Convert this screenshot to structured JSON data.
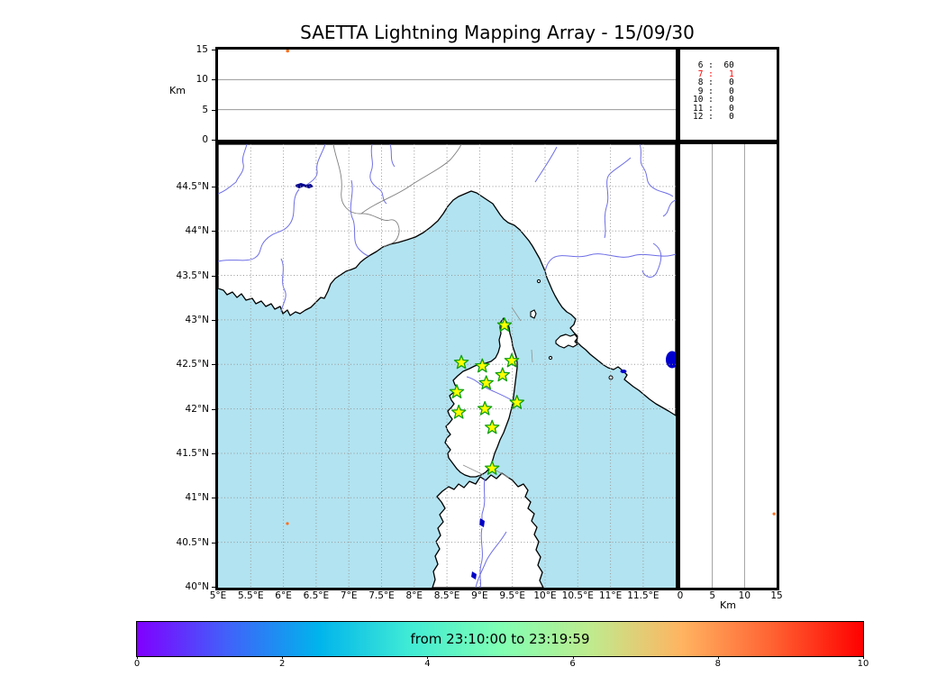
{
  "chart_data": {
    "type": "map",
    "title": "SAETTA Lightning Mapping Array - 15/09/30",
    "altitude_time_panel": {
      "ylabel": "Km",
      "ylim": [
        0,
        15
      ],
      "yticks": [
        {
          "v": 0,
          "label": "0"
        },
        {
          "v": 5,
          "label": "5"
        },
        {
          "v": 10,
          "label": "10"
        },
        {
          "v": 15,
          "label": "15"
        }
      ],
      "gridlines_km": [
        5,
        10
      ],
      "points": [
        {
          "time_frac": 0.152,
          "alt_km": 15.0
        }
      ]
    },
    "station_count_panel": {
      "rows": [
        {
          "key": "6",
          "value": "60",
          "highlight": false
        },
        {
          "key": "7",
          "value": "1",
          "highlight": true
        },
        {
          "key": "8",
          "value": "0",
          "highlight": false
        },
        {
          "key": "9",
          "value": "0",
          "highlight": false
        },
        {
          "key": "10",
          "value": "0",
          "highlight": false
        },
        {
          "key": "11",
          "value": "0",
          "highlight": false
        },
        {
          "key": "12",
          "value": "0",
          "highlight": false
        }
      ],
      "highlight_color": "#ff0000"
    },
    "map_panel": {
      "lon_range": [
        5,
        12
      ],
      "lat_range": [
        40,
        44.97
      ],
      "lon_ticks": [
        {
          "v": 5,
          "label": "5°E"
        },
        {
          "v": 5.5,
          "label": "5.5°E"
        },
        {
          "v": 6,
          "label": "6°E"
        },
        {
          "v": 6.5,
          "label": "6.5°E"
        },
        {
          "v": 7,
          "label": "7°E"
        },
        {
          "v": 7.5,
          "label": "7.5°E"
        },
        {
          "v": 8,
          "label": "8°E"
        },
        {
          "v": 8.5,
          "label": "8.5°E"
        },
        {
          "v": 9,
          "label": "9°E"
        },
        {
          "v": 9.5,
          "label": "9.5°E"
        },
        {
          "v": 10,
          "label": "10°E"
        },
        {
          "v": 10.5,
          "label": "10.5°E"
        },
        {
          "v": 11,
          "label": "11°E"
        },
        {
          "v": 11.5,
          "label": "11.5°E"
        }
      ],
      "lat_ticks": [
        {
          "v": 40,
          "label": "40°N"
        },
        {
          "v": 40.5,
          "label": "40.5°N"
        },
        {
          "v": 41,
          "label": "41°N"
        },
        {
          "v": 41.5,
          "label": "41.5°N"
        },
        {
          "v": 42,
          "label": "42°N"
        },
        {
          "v": 42.5,
          "label": "42.5°N"
        },
        {
          "v": 43,
          "label": "43°N"
        },
        {
          "v": 43.5,
          "label": "43.5°N"
        },
        {
          "v": 44,
          "label": "44°N"
        },
        {
          "v": 44.5,
          "label": "44.5°N"
        }
      ],
      "stations_lon_lat": [
        [
          9.38,
          42.94
        ],
        [
          8.72,
          42.52
        ],
        [
          9.04,
          42.48
        ],
        [
          9.49,
          42.54
        ],
        [
          9.35,
          42.38
        ],
        [
          9.1,
          42.29
        ],
        [
          8.65,
          42.19
        ],
        [
          9.57,
          42.07
        ],
        [
          9.08,
          42.0
        ],
        [
          8.68,
          41.96
        ],
        [
          9.19,
          41.79
        ],
        [
          9.19,
          41.33
        ]
      ],
      "event_points": [
        {
          "lon": 6.06,
          "lat": 40.71
        }
      ],
      "colors": {
        "sea": "#b2e3f0",
        "land": "#ffffff",
        "coast": "#000000",
        "river": "#6e6ee6",
        "border": "#808080",
        "lake": "#0000c8",
        "station_fill": "#ffff00",
        "station_edge": "#0ca00c",
        "event": "#ff7020",
        "grid": "#999999"
      }
    },
    "altitude_lat_panel": {
      "xlabel": "Km",
      "xlim": [
        0,
        15
      ],
      "xticks": [
        {
          "v": 0,
          "label": "0"
        },
        {
          "v": 5,
          "label": "5"
        },
        {
          "v": 10,
          "label": "10"
        },
        {
          "v": 15,
          "label": "15"
        }
      ],
      "gridlines_km": [
        5,
        10
      ],
      "points": [
        {
          "alt_km": 14.6,
          "lat": 40.82
        }
      ]
    },
    "colorbar": {
      "label": "from 23:10:00 to 23:19:59",
      "vmin": 0,
      "vmax": 10,
      "ticks": [
        {
          "v": 0,
          "label": "0"
        },
        {
          "v": 2,
          "label": "2"
        },
        {
          "v": 4,
          "label": "4"
        },
        {
          "v": 6,
          "label": "6"
        },
        {
          "v": 8,
          "label": "8"
        },
        {
          "v": 10,
          "label": "10"
        }
      ],
      "colormap": "rainbow",
      "gradient_stops": [
        "#8000ff",
        "#4062fa",
        "#00b4ec",
        "#40ebd5",
        "#80ffb4",
        "#bfeb8e",
        "#ffb461",
        "#ff6232",
        "#ff0000"
      ]
    }
  }
}
